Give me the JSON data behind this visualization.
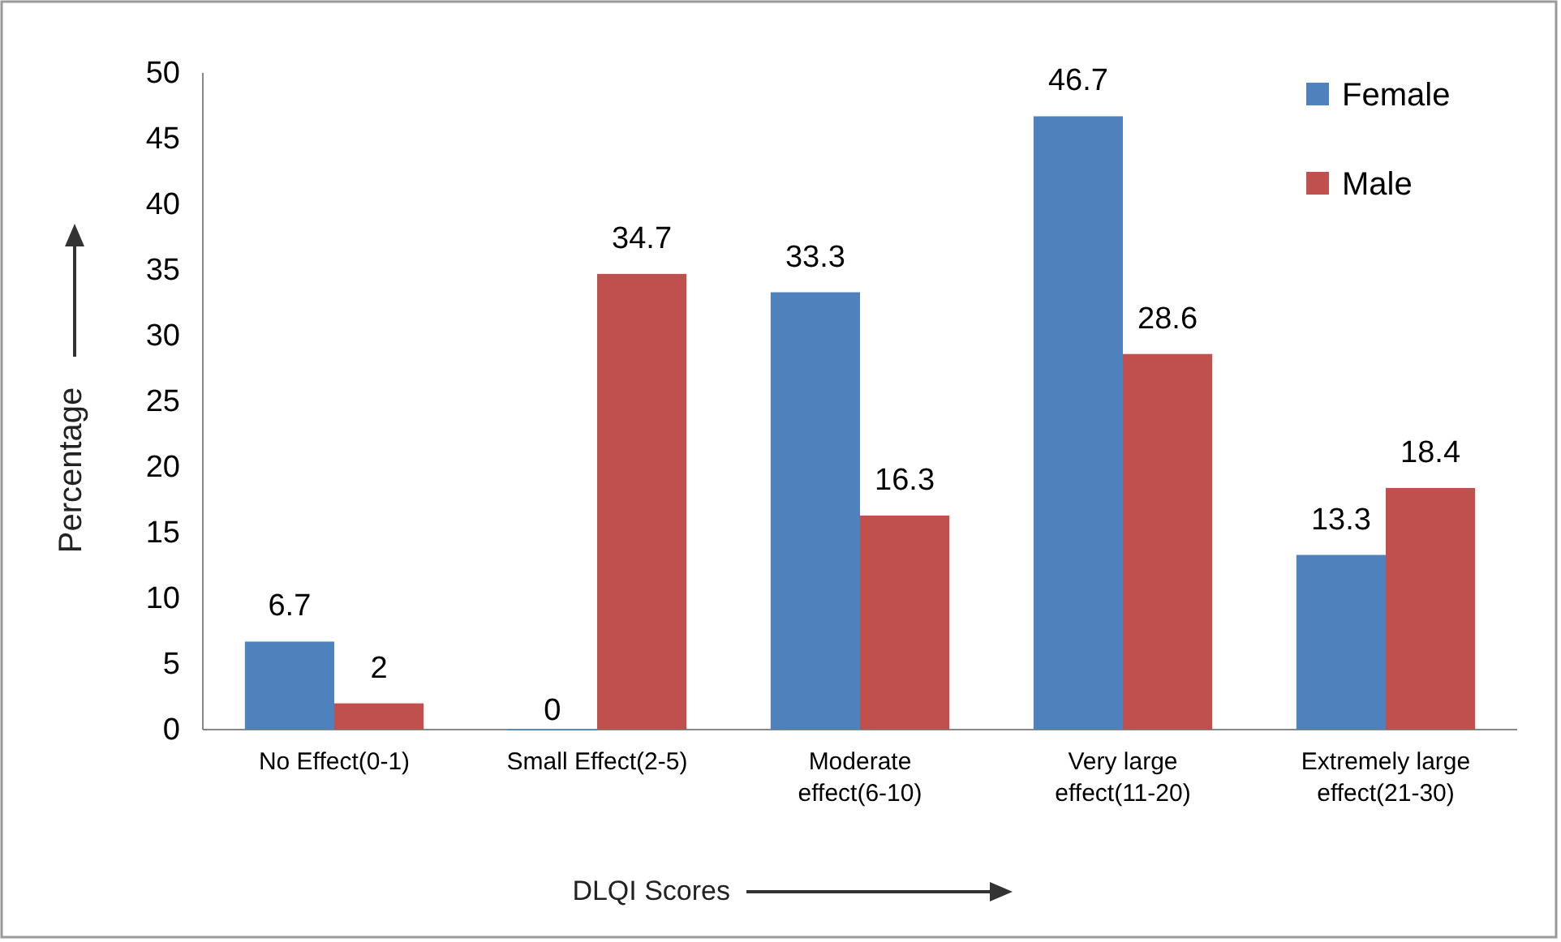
{
  "chart_data": {
    "type": "bar",
    "xlabel": "DLQI Scores",
    "ylabel": "Percentage",
    "categories": [
      "No Effect(0-1)",
      "Small Effect(2-5)",
      "Moderate effect(6-10)",
      "Very large effect(11-20)",
      "Extremely large effect(21-30)"
    ],
    "series": [
      {
        "name": "Female",
        "color": "#4f81bd",
        "values": [
          6.7,
          0,
          33.3,
          46.7,
          13.3
        ]
      },
      {
        "name": "Male",
        "color": "#c0504d",
        "values": [
          2,
          34.7,
          16.3,
          28.6,
          18.4
        ]
      }
    ],
    "ylim": [
      0,
      50
    ],
    "yticks": [
      0,
      5,
      10,
      15,
      20,
      25,
      30,
      35,
      40,
      45,
      50
    ],
    "data_labels": true,
    "legend": "top right"
  }
}
